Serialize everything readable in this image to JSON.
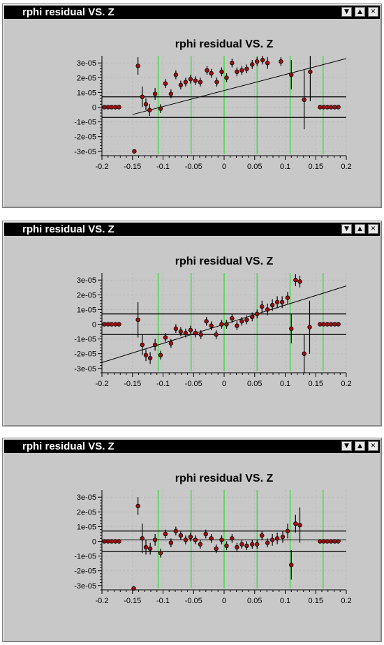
{
  "windows": [
    {
      "title": "rphi residual VS. Z"
    },
    {
      "title": "rphi residual VS. Z"
    },
    {
      "title": "rphi residual VS. Z"
    }
  ],
  "icons": {
    "minimize": "minimize-icon",
    "maximize": "maximize-icon",
    "close": "close-icon"
  },
  "colors": {
    "marker": "#a01010",
    "marker_edge": "#000000",
    "guide_lines": "#33dd33",
    "fit_line": "#000000",
    "band": "#000000",
    "grid": "#bbbbbb",
    "panel": "#c8c8c8"
  },
  "chart_data": [
    {
      "type": "scatter",
      "title": "rphi residual VS. Z",
      "xlabel": "",
      "ylabel": "",
      "xlim": [
        -0.2,
        0.2
      ],
      "ylim": [
        -3.2e-05,
        3.2e-05
      ],
      "x_ticks": [
        "-0.2",
        "-0.15",
        "-0.1",
        "-0.05",
        "0",
        "0.05",
        "0.1",
        "0.15",
        "0.2"
      ],
      "y_ticks": [
        "3e-05",
        "2e-05",
        "1e-05",
        "0",
        "-1e-05",
        "-2e-05",
        "-3e-05"
      ],
      "grid": true,
      "band": [
        -7e-06,
        7e-06
      ],
      "vertical_guides": [
        -0.108,
        -0.054,
        0.0,
        0.054,
        0.108,
        0.162
      ],
      "fit_line": {
        "x": [
          -0.15,
          0.2
        ],
        "y": [
          -5e-06,
          3.3e-05
        ]
      },
      "points": [
        {
          "x": -0.196,
          "y": 0,
          "e": 0
        },
        {
          "x": -0.19,
          "y": 0,
          "e": 0
        },
        {
          "x": -0.184,
          "y": 0,
          "e": 0
        },
        {
          "x": -0.178,
          "y": 0,
          "e": 0
        },
        {
          "x": -0.172,
          "y": 0,
          "e": 0
        },
        {
          "x": -0.147,
          "y": -3e-05,
          "e": 0
        },
        {
          "x": -0.141,
          "y": 2.8e-05,
          "e": 6e-06
        },
        {
          "x": -0.134,
          "y": 7e-06,
          "e": 7e-06
        },
        {
          "x": -0.128,
          "y": 2e-06,
          "e": 4e-06
        },
        {
          "x": -0.122,
          "y": -2e-06,
          "e": 4e-06
        },
        {
          "x": -0.113,
          "y": 9e-06,
          "e": 4e-06
        },
        {
          "x": -0.104,
          "y": -1e-06,
          "e": 3e-06
        },
        {
          "x": -0.096,
          "y": 1.6e-05,
          "e": 3e-06
        },
        {
          "x": -0.087,
          "y": 9e-06,
          "e": 3e-06
        },
        {
          "x": -0.079,
          "y": 2.2e-05,
          "e": 3e-06
        },
        {
          "x": -0.071,
          "y": 1.5e-05,
          "e": 3e-06
        },
        {
          "x": -0.063,
          "y": 1.7e-05,
          "e": 3e-06
        },
        {
          "x": -0.055,
          "y": 1.9e-05,
          "e": 3e-06
        },
        {
          "x": -0.047,
          "y": 1.8e-05,
          "e": 3e-06
        },
        {
          "x": -0.039,
          "y": 1.7e-05,
          "e": 3e-06
        },
        {
          "x": -0.028,
          "y": 2.5e-05,
          "e": 3e-06
        },
        {
          "x": -0.021,
          "y": 2.3e-05,
          "e": 3e-06
        },
        {
          "x": -0.012,
          "y": 1.7e-05,
          "e": 3e-06
        },
        {
          "x": -0.004,
          "y": 2.4e-05,
          "e": 3e-06
        },
        {
          "x": 0.004,
          "y": 2e-05,
          "e": 3e-06
        },
        {
          "x": 0.013,
          "y": 3e-05,
          "e": 3e-06
        },
        {
          "x": 0.021,
          "y": 2.4e-05,
          "e": 3e-06
        },
        {
          "x": 0.029,
          "y": 2.5e-05,
          "e": 3e-06
        },
        {
          "x": 0.037,
          "y": 2.6e-05,
          "e": 3e-06
        },
        {
          "x": 0.046,
          "y": 2.9e-05,
          "e": 3e-06
        },
        {
          "x": 0.054,
          "y": 3.1e-05,
          "e": 3e-06
        },
        {
          "x": 0.063,
          "y": 3.2e-05,
          "e": 3e-06
        },
        {
          "x": 0.071,
          "y": 3e-05,
          "e": 4e-06
        },
        {
          "x": 0.093,
          "y": 3.1e-05,
          "e": 3e-06
        },
        {
          "x": 0.11,
          "y": 2.2e-05,
          "e": 1e-05
        },
        {
          "x": 0.131,
          "y": 5e-06,
          "e": 2e-05
        },
        {
          "x": 0.141,
          "y": 2.4e-05,
          "e": 2e-05
        },
        {
          "x": 0.157,
          "y": 0,
          "e": 0
        },
        {
          "x": 0.163,
          "y": 0,
          "e": 0
        },
        {
          "x": 0.169,
          "y": 0,
          "e": 0
        },
        {
          "x": 0.175,
          "y": 0,
          "e": 0
        },
        {
          "x": 0.181,
          "y": 0,
          "e": 0
        },
        {
          "x": 0.187,
          "y": 0,
          "e": 0
        }
      ]
    },
    {
      "type": "scatter",
      "title": "rphi residual VS. Z",
      "xlabel": "",
      "ylabel": "",
      "xlim": [
        -0.2,
        0.2
      ],
      "ylim": [
        -3.2e-05,
        3.2e-05
      ],
      "x_ticks": [
        "-0.2",
        "-0.15",
        "-0.1",
        "-0.05",
        "0",
        "0.05",
        "0.1",
        "0.15",
        "0.2"
      ],
      "y_ticks": [
        "3e-05",
        "2e-05",
        "1e-05",
        "0",
        "-1e-05",
        "-2e-05",
        "-3e-05"
      ],
      "grid": true,
      "band": [
        -7e-06,
        7e-06
      ],
      "vertical_guides": [
        -0.108,
        -0.054,
        0.0,
        0.054,
        0.108,
        0.162
      ],
      "fit_line": {
        "x": [
          -0.2,
          0.2
        ],
        "y": [
          -2.6e-05,
          2.6e-05
        ]
      },
      "points": [
        {
          "x": -0.196,
          "y": 0,
          "e": 0
        },
        {
          "x": -0.19,
          "y": 0,
          "e": 0
        },
        {
          "x": -0.184,
          "y": 0,
          "e": 0
        },
        {
          "x": -0.178,
          "y": 0,
          "e": 0
        },
        {
          "x": -0.172,
          "y": 0,
          "e": 0
        },
        {
          "x": -0.141,
          "y": 3e-06,
          "e": 1.2e-05
        },
        {
          "x": -0.134,
          "y": -1.4e-05,
          "e": 7e-06
        },
        {
          "x": -0.128,
          "y": -2.1e-05,
          "e": 4e-06
        },
        {
          "x": -0.121,
          "y": -2.3e-05,
          "e": 4e-06
        },
        {
          "x": -0.113,
          "y": -1.4e-05,
          "e": 4e-06
        },
        {
          "x": -0.104,
          "y": -2.1e-05,
          "e": 3e-06
        },
        {
          "x": -0.096,
          "y": -9e-06,
          "e": 3e-06
        },
        {
          "x": -0.087,
          "y": -1.3e-05,
          "e": 3e-06
        },
        {
          "x": -0.079,
          "y": -3e-06,
          "e": 3e-06
        },
        {
          "x": -0.071,
          "y": -5e-06,
          "e": 3e-06
        },
        {
          "x": -0.063,
          "y": -6e-06,
          "e": 3e-06
        },
        {
          "x": -0.055,
          "y": -4e-06,
          "e": 3e-06
        },
        {
          "x": -0.047,
          "y": -6e-06,
          "e": 3e-06
        },
        {
          "x": -0.038,
          "y": -7e-06,
          "e": 3e-06
        },
        {
          "x": -0.029,
          "y": 2e-06,
          "e": 3e-06
        },
        {
          "x": -0.021,
          "y": -1e-06,
          "e": 3e-06
        },
        {
          "x": -0.013,
          "y": -7e-06,
          "e": 3e-06
        },
        {
          "x": -0.004,
          "y": 0,
          "e": 3e-06
        },
        {
          "x": 0.004,
          "y": 0,
          "e": 3e-06
        },
        {
          "x": 0.013,
          "y": 4e-06,
          "e": 3e-06
        },
        {
          "x": 0.021,
          "y": -1e-06,
          "e": 3e-06
        },
        {
          "x": 0.029,
          "y": 2e-06,
          "e": 3e-06
        },
        {
          "x": 0.037,
          "y": 3e-06,
          "e": 3e-06
        },
        {
          "x": 0.046,
          "y": 5e-06,
          "e": 3e-06
        },
        {
          "x": 0.054,
          "y": 7e-06,
          "e": 3e-06
        },
        {
          "x": 0.062,
          "y": 1.2e-05,
          "e": 4e-06
        },
        {
          "x": 0.071,
          "y": 1e-05,
          "e": 4e-06
        },
        {
          "x": 0.079,
          "y": 1.3e-05,
          "e": 4e-06
        },
        {
          "x": 0.087,
          "y": 1.5e-05,
          "e": 4e-06
        },
        {
          "x": 0.095,
          "y": 1.5e-05,
          "e": 4e-06
        },
        {
          "x": 0.104,
          "y": 1.8e-05,
          "e": 4e-06
        },
        {
          "x": 0.11,
          "y": -3e-06,
          "e": 1e-05
        },
        {
          "x": 0.117,
          "y": 3e-05,
          "e": 4e-06
        },
        {
          "x": 0.124,
          "y": 2.9e-05,
          "e": 4e-06
        },
        {
          "x": 0.131,
          "y": -2e-05,
          "e": 1.3e-05
        },
        {
          "x": 0.14,
          "y": -2e-06,
          "e": 1.8e-05
        },
        {
          "x": 0.157,
          "y": 0,
          "e": 0
        },
        {
          "x": 0.163,
          "y": 0,
          "e": 0
        },
        {
          "x": 0.169,
          "y": 0,
          "e": 0
        },
        {
          "x": 0.175,
          "y": 0,
          "e": 0
        },
        {
          "x": 0.181,
          "y": 0,
          "e": 0
        },
        {
          "x": 0.187,
          "y": 0,
          "e": 0
        }
      ]
    },
    {
      "type": "scatter",
      "title": "rphi residual VS. Z",
      "xlabel": "",
      "ylabel": "",
      "xlim": [
        -0.2,
        0.2
      ],
      "ylim": [
        -3.2e-05,
        3.2e-05
      ],
      "x_ticks": [
        "-0.2",
        "-0.15",
        "-0.1",
        "-0.05",
        "0",
        "0.05",
        "0.1",
        "0.15",
        "0.2"
      ],
      "y_ticks": [
        "3e-05",
        "2e-05",
        "1e-05",
        "0",
        "-1e-05",
        "-2e-05",
        "-3e-05"
      ],
      "grid": true,
      "band": [
        -7e-06,
        7e-06
      ],
      "vertical_guides": [
        -0.108,
        -0.054,
        0.0,
        0.054,
        0.108,
        0.162
      ],
      "fit_line": {
        "x": [
          -0.2,
          0.2
        ],
        "y": [
          1e-06,
          1e-06
        ]
      },
      "points": [
        {
          "x": -0.196,
          "y": 0,
          "e": 0
        },
        {
          "x": -0.19,
          "y": 0,
          "e": 0
        },
        {
          "x": -0.184,
          "y": 0,
          "e": 0
        },
        {
          "x": -0.178,
          "y": 0,
          "e": 0
        },
        {
          "x": -0.172,
          "y": 0,
          "e": 0
        },
        {
          "x": -0.148,
          "y": -3.2e-05,
          "e": 0
        },
        {
          "x": -0.141,
          "y": 2.4e-05,
          "e": 6e-06
        },
        {
          "x": -0.134,
          "y": 2e-06,
          "e": 1e-05
        },
        {
          "x": -0.128,
          "y": -4e-06,
          "e": 5e-06
        },
        {
          "x": -0.121,
          "y": -5e-06,
          "e": 4e-06
        },
        {
          "x": -0.113,
          "y": 1e-06,
          "e": 4e-06
        },
        {
          "x": -0.104,
          "y": -8e-06,
          "e": 3e-06
        },
        {
          "x": -0.096,
          "y": 5e-06,
          "e": 3e-06
        },
        {
          "x": -0.087,
          "y": -1e-06,
          "e": 3e-06
        },
        {
          "x": -0.079,
          "y": 7e-06,
          "e": 3e-06
        },
        {
          "x": -0.071,
          "y": 4e-06,
          "e": 3e-06
        },
        {
          "x": -0.063,
          "y": 1e-06,
          "e": 3e-06
        },
        {
          "x": -0.055,
          "y": 3e-06,
          "e": 3e-06
        },
        {
          "x": -0.047,
          "y": 1e-06,
          "e": 3e-06
        },
        {
          "x": -0.039,
          "y": -2e-06,
          "e": 3e-06
        },
        {
          "x": -0.03,
          "y": 5e-06,
          "e": 3e-06
        },
        {
          "x": -0.021,
          "y": 2e-06,
          "e": 3e-06
        },
        {
          "x": -0.013,
          "y": -5e-06,
          "e": 3e-06
        },
        {
          "x": -0.004,
          "y": 1e-06,
          "e": 3e-06
        },
        {
          "x": 0.004,
          "y": -3e-06,
          "e": 3e-06
        },
        {
          "x": 0.013,
          "y": 2e-06,
          "e": 3e-06
        },
        {
          "x": 0.021,
          "y": -4e-06,
          "e": 3e-06
        },
        {
          "x": 0.029,
          "y": -2e-06,
          "e": 3e-06
        },
        {
          "x": 0.037,
          "y": -3e-06,
          "e": 3e-06
        },
        {
          "x": 0.046,
          "y": -2e-06,
          "e": 3e-06
        },
        {
          "x": 0.054,
          "y": -2e-06,
          "e": 3e-06
        },
        {
          "x": 0.062,
          "y": 4e-06,
          "e": 3e-06
        },
        {
          "x": 0.071,
          "y": -1e-06,
          "e": 3e-06
        },
        {
          "x": 0.079,
          "y": 1e-06,
          "e": 4e-06
        },
        {
          "x": 0.087,
          "y": 2e-06,
          "e": 4e-06
        },
        {
          "x": 0.096,
          "y": 3e-06,
          "e": 4e-06
        },
        {
          "x": 0.104,
          "y": 7e-06,
          "e": 5e-06
        },
        {
          "x": 0.11,
          "y": -1.6e-05,
          "e": 1e-05
        },
        {
          "x": 0.117,
          "y": 1.2e-05,
          "e": 6e-06
        },
        {
          "x": 0.124,
          "y": 1.1e-05,
          "e": 1.2e-05
        },
        {
          "x": 0.157,
          "y": 0,
          "e": 0
        },
        {
          "x": 0.163,
          "y": 0,
          "e": 0
        },
        {
          "x": 0.169,
          "y": 0,
          "e": 0
        },
        {
          "x": 0.175,
          "y": 0,
          "e": 0
        },
        {
          "x": 0.181,
          "y": 0,
          "e": 0
        },
        {
          "x": 0.187,
          "y": 0,
          "e": 0
        }
      ]
    }
  ]
}
